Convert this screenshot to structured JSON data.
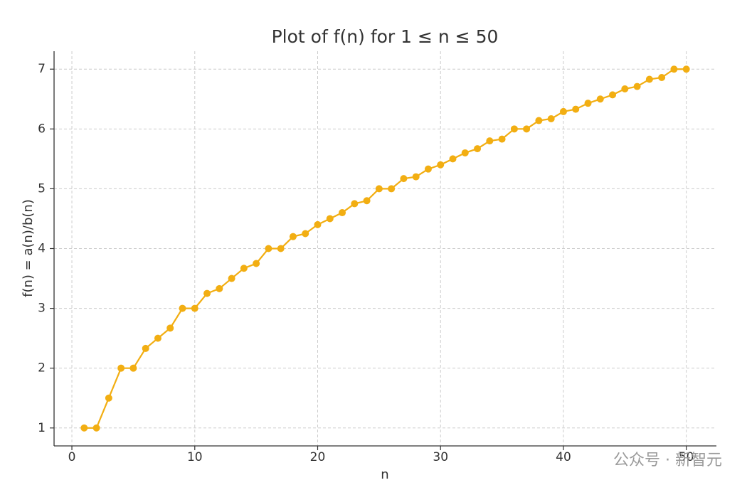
{
  "chart_data": {
    "type": "line",
    "title": "Plot of f(n) for 1 ≤ n ≤ 50",
    "x_label": "n",
    "y_label": "f(n) = a(n)/b(n)",
    "x": [
      1,
      2,
      3,
      4,
      5,
      6,
      7,
      8,
      9,
      10,
      11,
      12,
      13,
      14,
      15,
      16,
      17,
      18,
      19,
      20,
      21,
      22,
      23,
      24,
      25,
      26,
      27,
      28,
      29,
      30,
      31,
      32,
      33,
      34,
      35,
      36,
      37,
      38,
      39,
      40,
      41,
      42,
      43,
      44,
      45,
      46,
      47,
      48,
      49,
      50
    ],
    "series": [
      {
        "name": "f(n)",
        "color": "#f2ae12",
        "values": [
          1,
          1,
          1.5,
          2,
          2,
          2.33,
          2.5,
          2.67,
          3,
          3,
          3.25,
          3.33,
          3.5,
          3.67,
          3.75,
          4,
          4,
          4.2,
          4.25,
          4.4,
          4.5,
          4.6,
          4.75,
          4.8,
          5,
          5,
          5.17,
          5.2,
          5.33,
          5.4,
          5.5,
          5.6,
          5.67,
          5.8,
          5.83,
          6,
          6,
          6.14,
          6.17,
          6.29,
          6.33,
          6.43,
          6.5,
          6.57,
          6.67,
          6.71,
          6.83,
          6.86,
          7,
          7
        ]
      }
    ],
    "xlim": [
      -1.45,
      52.45
    ],
    "ylim": [
      0.7,
      7.3
    ],
    "xticks": [
      0,
      10,
      20,
      30,
      40,
      50
    ],
    "yticks": [
      1,
      2,
      3,
      4,
      5,
      6,
      7
    ],
    "grid": true,
    "watermark": "公众号 · 新智元"
  }
}
